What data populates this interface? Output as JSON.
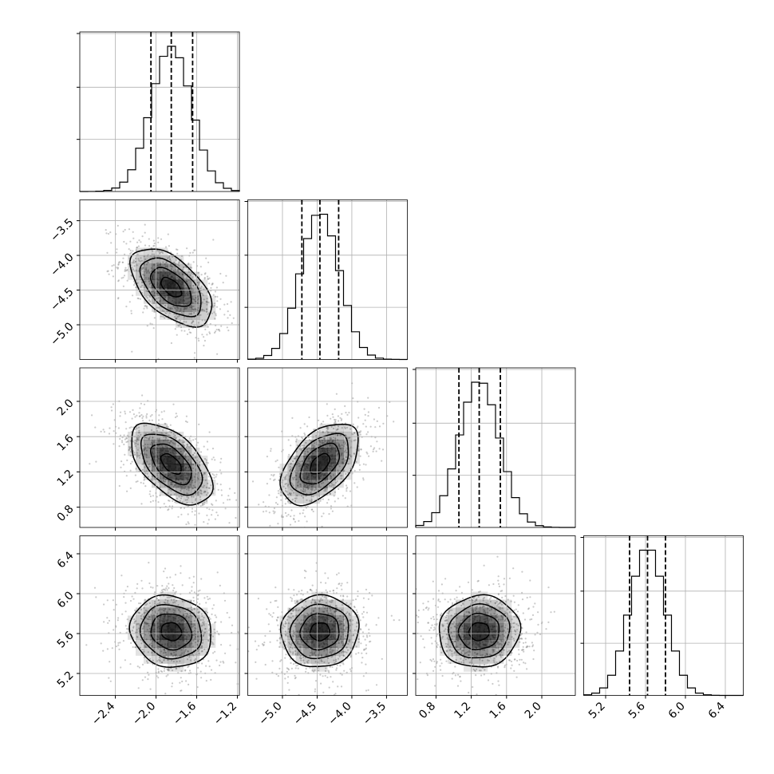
{
  "chart_data": {
    "type": "corner",
    "parameters": [
      {
        "id": "p0",
        "range": [
          -2.75,
          -1.18
        ],
        "ticks": [
          -2.4,
          -2.0,
          -1.6,
          -1.2
        ],
        "tick_labels": [
          "−2.4",
          "−2.0",
          "−1.6",
          "−1.2"
        ],
        "mean": -1.85,
        "sd": 0.2,
        "quantiles": [
          -2.05,
          -1.85,
          -1.64
        ]
      },
      {
        "id": "p1",
        "range": [
          -5.5,
          -3.2
        ],
        "ticks": [
          -5.0,
          -4.5,
          -4.0,
          -3.5
        ],
        "tick_labels": [
          "−5.0",
          "−4.5",
          "−4.0",
          "−3.5"
        ],
        "mean": -4.46,
        "sd": 0.28,
        "quantiles": [
          -4.72,
          -4.46,
          -4.19
        ]
      },
      {
        "id": "p2",
        "range": [
          0.57,
          2.38
        ],
        "ticks": [
          0.8,
          1.2,
          1.6,
          2.0
        ],
        "tick_labels": [
          "0.8",
          "1.2",
          "1.6",
          "2.0"
        ],
        "mean": 1.29,
        "sd": 0.23,
        "quantiles": [
          1.06,
          1.29,
          1.53
        ]
      },
      {
        "id": "p3",
        "range": [
          4.98,
          6.58
        ],
        "ticks": [
          5.2,
          5.6,
          6.0,
          6.4
        ],
        "tick_labels": [
          "5.2",
          "5.6",
          "6.0",
          "6.4"
        ],
        "mean": 5.62,
        "sd": 0.18,
        "quantiles": [
          5.44,
          5.62,
          5.8
        ]
      }
    ],
    "correlations": [
      [
        1.0,
        -0.55,
        -0.55,
        -0.1
      ],
      [
        -0.55,
        1.0,
        0.5,
        0.05
      ],
      [
        -0.55,
        0.5,
        1.0,
        0.05
      ],
      [
        -0.1,
        0.05,
        0.05,
        1.0
      ]
    ],
    "histogram": {
      "bins": 20,
      "shape": "gaussian",
      "peak_fraction": 0.91,
      "tick_fractions": [
        0.33,
        0.66,
        1.0
      ]
    },
    "density": {
      "contour_levels_sigma": [
        0.5,
        1.0,
        1.5,
        2.0
      ],
      "scatter_points": 900,
      "grid_cells": 20
    },
    "grid": true,
    "line_color": "#000000",
    "grid_color": "#b0b0b0",
    "point_color": "#8a8a8a",
    "density_color": "#000000"
  }
}
